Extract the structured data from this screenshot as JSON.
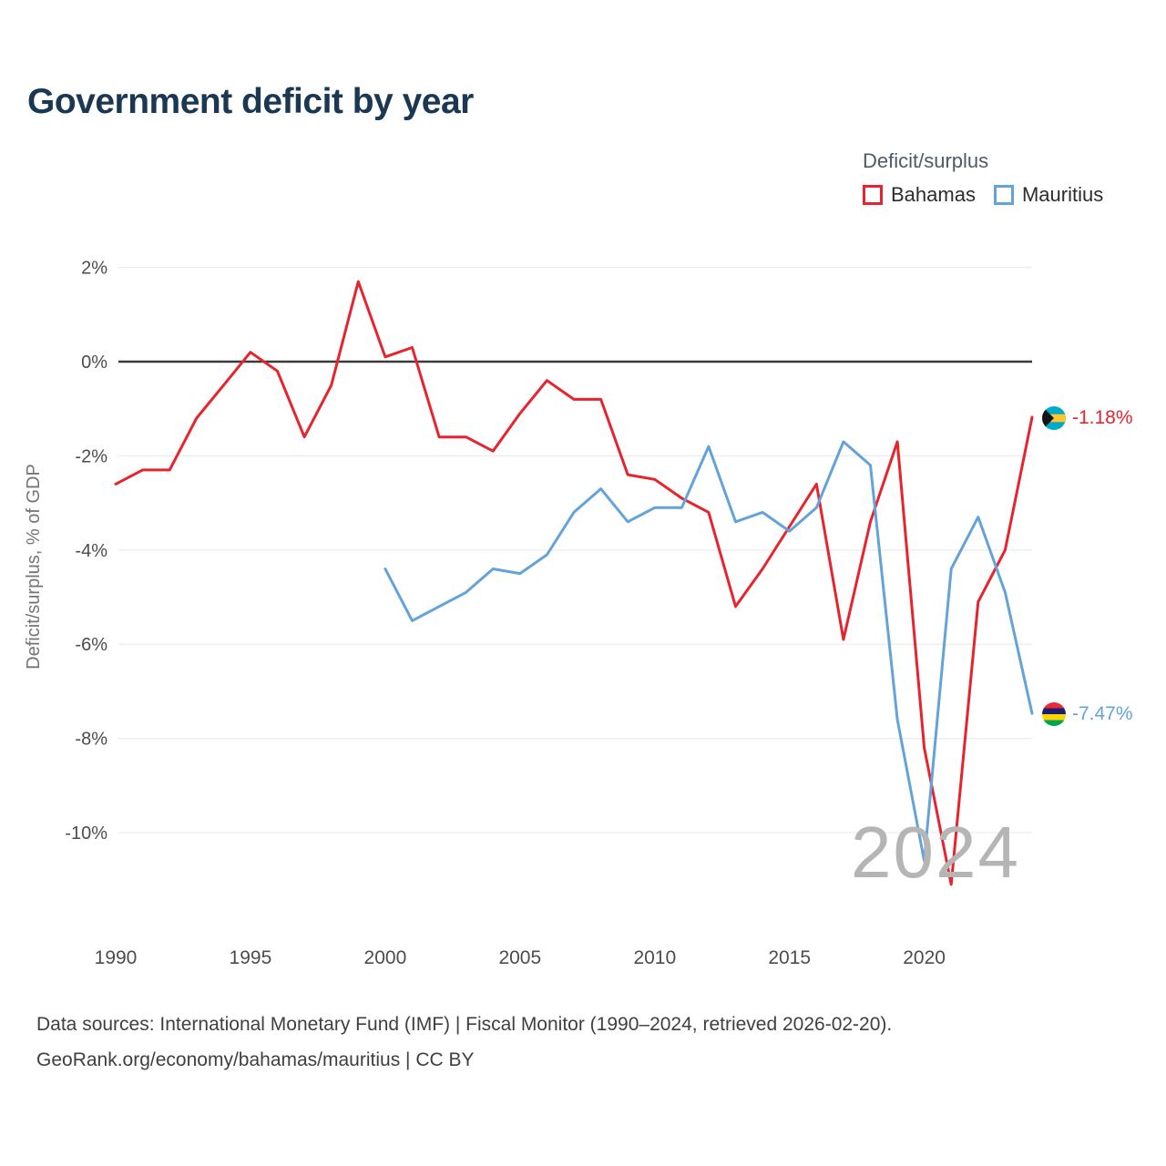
{
  "title": "Government deficit by year",
  "legend": {
    "title": "Deficit/surplus"
  },
  "watermark": "2024",
  "end_labels": {
    "bahamas": {
      "value": "-1.18%"
    },
    "mauritius": {
      "value": "-7.47%"
    }
  },
  "footer": {
    "line1": "Data sources: International Monetary Fund (IMF) | Fiscal Monitor (1990–2024, retrieved 2026-02-20).",
    "line2": "GeoRank.org/economy/bahamas/mauritius | CC BY"
  },
  "chart_data": {
    "type": "line",
    "title": "Government deficit by year",
    "xlabel": "",
    "ylabel": "Deficit/surplus, % of GDP",
    "xlim": [
      1990,
      2024
    ],
    "ylim": [
      -11.5,
      2.3
    ],
    "x_ticks": [
      1990,
      1995,
      2000,
      2005,
      2010,
      2015,
      2020
    ],
    "y_ticks": [
      2,
      0,
      -2,
      -4,
      -6,
      -8,
      -10
    ],
    "y_tick_suffix": "%",
    "grid": true,
    "zero_line": true,
    "legend_position": "top-right",
    "series": [
      {
        "name": "Bahamas",
        "color": "#e8232d",
        "x": [
          1990,
          1991,
          1992,
          1993,
          1994,
          1995,
          1996,
          1997,
          1998,
          1999,
          2000,
          2001,
          2002,
          2003,
          2004,
          2005,
          2006,
          2007,
          2008,
          2009,
          2010,
          2011,
          2012,
          2013,
          2014,
          2015,
          2016,
          2017,
          2018,
          2019,
          2020,
          2021,
          2022,
          2023,
          2024
        ],
        "values": [
          -2.6,
          -2.3,
          -2.3,
          -1.2,
          -0.5,
          0.2,
          -0.2,
          -1.6,
          -0.5,
          1.7,
          0.1,
          0.3,
          -1.6,
          -1.6,
          -1.9,
          -1.1,
          -0.4,
          -0.8,
          -0.8,
          -2.4,
          -2.5,
          -2.9,
          -3.2,
          -5.2,
          -4.4,
          -3.5,
          -2.6,
          -5.9,
          -3.4,
          -1.7,
          -8.2,
          -11.1,
          -5.1,
          -4.0,
          -1.18
        ]
      },
      {
        "name": "Mauritius",
        "color": "#63a3da",
        "x": [
          2000,
          2001,
          2002,
          2003,
          2004,
          2005,
          2006,
          2007,
          2008,
          2009,
          2010,
          2011,
          2012,
          2013,
          2014,
          2015,
          2016,
          2017,
          2018,
          2019,
          2020,
          2021,
          2022,
          2023,
          2024
        ],
        "values": [
          -4.4,
          -5.5,
          -5.2,
          -4.9,
          -4.4,
          -4.5,
          -4.1,
          -3.2,
          -2.7,
          -3.4,
          -3.1,
          -3.1,
          -1.8,
          -3.4,
          -3.2,
          -3.6,
          -3.1,
          -1.7,
          -2.2,
          -7.6,
          -10.6,
          -4.4,
          -3.3,
          -4.9,
          -7.47
        ]
      }
    ]
  }
}
